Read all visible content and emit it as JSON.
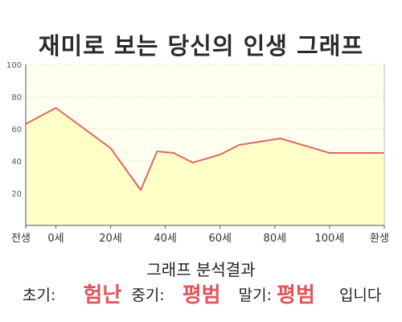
{
  "chart_data": {
    "type": "area",
    "title": "재미로 보는 당신의 인생 그래프",
    "xlabel": "",
    "ylabel": "",
    "categories": [
      "전생",
      "0세",
      "20세",
      "40세",
      "60세",
      "80세",
      "100세",
      "환생"
    ],
    "points": [
      {
        "x": -11,
        "y": 63
      },
      {
        "x": 0,
        "y": 73
      },
      {
        "x": 20,
        "y": 48
      },
      {
        "x": 31,
        "y": 22
      },
      {
        "x": 37,
        "y": 46
      },
      {
        "x": 43,
        "y": 45
      },
      {
        "x": 50,
        "y": 39
      },
      {
        "x": 60,
        "y": 44
      },
      {
        "x": 67,
        "y": 50
      },
      {
        "x": 82,
        "y": 54
      },
      {
        "x": 100,
        "y": 45
      }
    ],
    "xticks": [
      {
        "x": -11,
        "label": "전생"
      },
      {
        "x": 0,
        "label": "0세"
      },
      {
        "x": 20,
        "label": "20세"
      },
      {
        "x": 40,
        "label": "40세"
      },
      {
        "x": 60,
        "label": "60세"
      },
      {
        "x": 80,
        "label": "80세"
      },
      {
        "x": 100,
        "label": "100세"
      },
      {
        "x": 120,
        "label": "환생"
      }
    ],
    "yticks": [
      20,
      40,
      60,
      80,
      100
    ],
    "ylim": [
      0,
      100
    ],
    "grid": true,
    "colors": {
      "line": "#e06666",
      "fill": "#ffffc8",
      "plot_bg": "#fffff0"
    }
  },
  "summary": {
    "heading": "그래프 분석결과",
    "early_label": "초기:",
    "early_value": "험난",
    "mid_label": "중기:",
    "mid_value": "평범",
    "late_label": "말기:",
    "late_value": "평범",
    "ending": "입니다"
  }
}
